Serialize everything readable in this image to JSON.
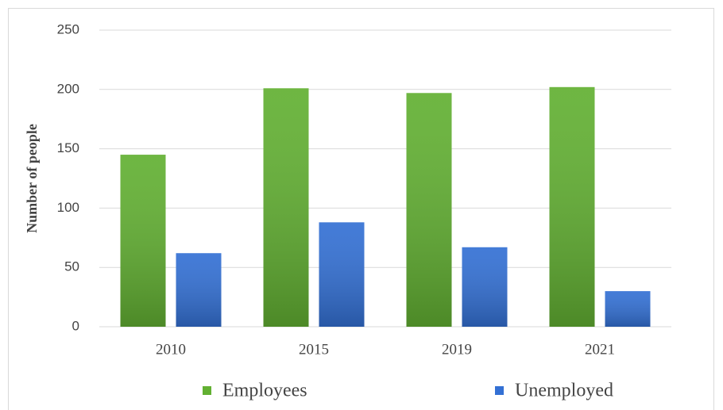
{
  "chart_data": {
    "type": "bar",
    "categories": [
      "2010",
      "2015",
      "2019",
      "2021"
    ],
    "series": [
      {
        "name": "Employees",
        "color": "#62b032",
        "values": [
          145,
          201,
          197,
          202
        ]
      },
      {
        "name": "Unemployed",
        "color": "#3370d4",
        "values": [
          62,
          88,
          67,
          30
        ]
      }
    ],
    "ylabel": "Number of people",
    "ylim": [
      0,
      250
    ],
    "yticks": [
      0,
      50,
      100,
      150,
      200,
      250
    ],
    "grid": true,
    "legend": "bottom"
  }
}
